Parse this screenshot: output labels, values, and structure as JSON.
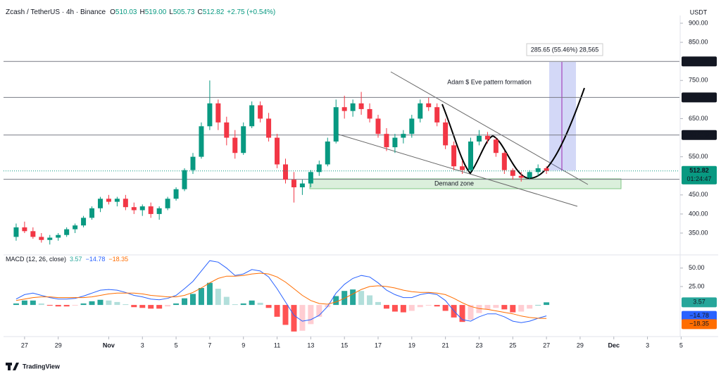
{
  "header": {
    "symbol": "Zcash / TetherUS · 4h · Binance",
    "ohlc": [
      [
        "O",
        "510.03"
      ],
      [
        "H",
        "519.00"
      ],
      [
        "L",
        "505.73"
      ],
      [
        "C",
        "512.82"
      ]
    ],
    "change": "+2.75 (+0.54%)",
    "currency": "USDT"
  },
  "chart_data": [
    {
      "type": "candlestick",
      "up_color": "#089981",
      "down_color": "#f23645",
      "x": [
        -0.5,
        0,
        0.5,
        1,
        1.5,
        2,
        2.5,
        3,
        3.5,
        4,
        4.5,
        5,
        5.5,
        6,
        6.5,
        7,
        7.5,
        8,
        8.5,
        9,
        9.5,
        10,
        10.5,
        11,
        11.5,
        12,
        12.5,
        13,
        13.5,
        14,
        14.5,
        15,
        15.5,
        16,
        16.5,
        17,
        17.5,
        18,
        18.5,
        19,
        19.5,
        20,
        20.5,
        21,
        21.5,
        22,
        22.5,
        23,
        23.5,
        24,
        24.5,
        25,
        25.5,
        26,
        26.5,
        27,
        27.5,
        28,
        28.5,
        29,
        29.5,
        30,
        30.5,
        31
      ],
      "open": [
        340,
        365,
        355,
        340,
        332,
        338,
        345,
        360,
        370,
        390,
        415,
        440,
        432,
        440,
        418,
        410,
        420,
        400,
        415,
        440,
        465,
        515,
        550,
        630,
        690,
        640,
        600,
        560,
        630,
        685,
        650,
        600,
        530,
        490,
        470,
        480,
        510,
        530,
        590,
        680,
        670,
        690,
        675,
        650,
        610,
        575,
        600,
        610,
        650,
        690,
        680,
        640,
        580,
        525,
        515,
        590,
        605,
        595,
        560,
        515,
        500,
        495,
        510,
        520
      ],
      "high": [
        375,
        380,
        365,
        350,
        345,
        350,
        365,
        375,
        395,
        420,
        445,
        450,
        445,
        450,
        430,
        425,
        430,
        420,
        445,
        470,
        520,
        560,
        640,
        750,
        700,
        655,
        620,
        640,
        695,
        695,
        665,
        610,
        545,
        510,
        490,
        515,
        540,
        600,
        700,
        710,
        700,
        720,
        690,
        660,
        625,
        610,
        620,
        660,
        700,
        705,
        690,
        650,
        590,
        540,
        600,
        620,
        615,
        600,
        565,
        520,
        510,
        515,
        530,
        525
      ],
      "low": [
        330,
        350,
        335,
        325,
        320,
        330,
        340,
        350,
        365,
        385,
        405,
        425,
        420,
        410,
        400,
        395,
        390,
        385,
        410,
        435,
        460,
        505,
        545,
        620,
        620,
        580,
        545,
        555,
        625,
        640,
        590,
        520,
        480,
        430,
        450,
        470,
        500,
        525,
        585,
        650,
        655,
        660,
        640,
        600,
        565,
        560,
        585,
        600,
        640,
        670,
        630,
        570,
        515,
        505,
        510,
        580,
        585,
        550,
        505,
        490,
        485,
        490,
        500,
        505
      ],
      "close": [
        365,
        355,
        340,
        332,
        338,
        345,
        360,
        370,
        390,
        415,
        440,
        432,
        440,
        418,
        410,
        420,
        400,
        415,
        440,
        465,
        515,
        550,
        630,
        690,
        640,
        600,
        560,
        630,
        685,
        650,
        600,
        530,
        490,
        470,
        480,
        510,
        530,
        590,
        680,
        670,
        690,
        675,
        650,
        610,
        575,
        600,
        610,
        650,
        690,
        680,
        640,
        580,
        525,
        515,
        590,
        605,
        595,
        560,
        515,
        500,
        495,
        510,
        520,
        512.82
      ],
      "xlim": [
        -1.25,
        38.9
      ],
      "ylim": [
        296.5,
        927.7
      ],
      "xticks": [
        {
          "value": 0,
          "label": "27"
        },
        {
          "value": 2,
          "label": "29"
        },
        {
          "value": 5,
          "label": "Nov"
        },
        {
          "value": 7,
          "label": "3"
        },
        {
          "value": 9,
          "label": "5"
        },
        {
          "value": 11,
          "label": "7"
        },
        {
          "value": 13,
          "label": "9"
        },
        {
          "value": 15,
          "label": "11"
        },
        {
          "value": 17,
          "label": "13"
        },
        {
          "value": 19,
          "label": "15"
        },
        {
          "value": 21,
          "label": "17"
        },
        {
          "value": 23,
          "label": "19"
        },
        {
          "value": 25,
          "label": "21"
        },
        {
          "value": 27,
          "label": "23"
        },
        {
          "value": 29,
          "label": "25"
        },
        {
          "value": 31,
          "label": "27"
        },
        {
          "value": 33,
          "label": "29"
        },
        {
          "value": 35,
          "label": "Dec"
        },
        {
          "value": 37,
          "label": "3"
        },
        {
          "value": 39,
          "label": "5"
        }
      ],
      "yticks": [
        {
          "value": 900,
          "label": "900.00"
        },
        {
          "value": 850,
          "label": "850.00"
        },
        {
          "value": 750,
          "label": "750.00"
        },
        {
          "value": 650,
          "label": "650.00"
        },
        {
          "value": 550,
          "label": "550.00"
        },
        {
          "value": 450,
          "label": "450.00"
        },
        {
          "value": 400,
          "label": "400.00"
        },
        {
          "value": 350,
          "label": "350.00"
        }
      ],
      "levels": [
        {
          "value": 800,
          "label": "800.00"
        },
        {
          "value": 705.6,
          "label": "705.60"
        },
        {
          "value": 607.1,
          "label": "607.10"
        },
        {
          "value": 491.09,
          "label": "491.09"
        }
      ],
      "last": 512.82,
      "countdown": "01:24:47",
      "annotations": {
        "pattern": "Adam $ Eve pattern formation",
        "zone": "Demand zone",
        "measure": "285.65 (55.46%) 28,565"
      }
    },
    {
      "type": "macd",
      "title": "MACD (12, 26, close)",
      "series": [
        {
          "name": "MACD",
          "color": "#2962ff",
          "values": [
            8,
            14,
            16,
            13,
            10,
            8,
            8,
            9,
            12,
            16,
            20,
            21,
            20,
            17,
            13,
            11,
            8,
            7,
            9,
            13,
            22,
            32,
            46,
            60,
            58,
            50,
            40,
            42,
            48,
            46,
            38,
            22,
            4,
            -14,
            -22,
            -20,
            -14,
            -2,
            16,
            28,
            36,
            40,
            38,
            30,
            20,
            14,
            10,
            10,
            14,
            16,
            14,
            6,
            -8,
            -20,
            -22,
            -16,
            -12,
            -12,
            -16,
            -22,
            -24,
            -22,
            -18,
            -14.78
          ]
        },
        {
          "name": "Signal",
          "color": "#ff6d00",
          "values": [
            6,
            8,
            10,
            11,
            11,
            10,
            10,
            10,
            10,
            11,
            13,
            15,
            16,
            16,
            16,
            15,
            13,
            12,
            11,
            11,
            13,
            17,
            23,
            30,
            36,
            39,
            39,
            40,
            42,
            43,
            42,
            38,
            31,
            22,
            13,
            6,
            2,
            1,
            4,
            9,
            15,
            21,
            25,
            26,
            25,
            23,
            20,
            18,
            17,
            17,
            16,
            14,
            9,
            3,
            -2,
            -5,
            -6,
            -8,
            -10,
            -12,
            -15,
            -17,
            -18,
            -18.35
          ]
        },
        {
          "name": "Histogram",
          "color": "#26a69a",
          "values": [
            2,
            6,
            6,
            2,
            -1,
            -2,
            -2,
            -1,
            2,
            5,
            7,
            6,
            4,
            1,
            -3,
            -4,
            -5,
            -5,
            -2,
            2,
            9,
            15,
            23,
            30,
            22,
            11,
            1,
            2,
            6,
            3,
            -4,
            -16,
            -27,
            -36,
            -35,
            -26,
            -16,
            -3,
            12,
            19,
            21,
            19,
            13,
            4,
            -5,
            -9,
            -10,
            -8,
            -3,
            -1,
            -2,
            -8,
            -17,
            -23,
            -20,
            -11,
            -6,
            -4,
            -6,
            -10,
            -9,
            -5,
            0,
            3.57
          ]
        }
      ],
      "ylim": [
        -40,
        65
      ],
      "yticks": [
        {
          "value": 50,
          "label": "50.00"
        },
        {
          "value": 25,
          "label": "25.00"
        }
      ],
      "readout": [
        {
          "value": 3.57,
          "label": "3.57",
          "color": "#26a69a"
        },
        {
          "value": -14.78,
          "label": "−14.78",
          "color": "#2962ff"
        },
        {
          "value": -18.35,
          "label": "−18.35",
          "color": "#ff6d00"
        }
      ]
    }
  ],
  "footer": {
    "brand": "TradingView"
  }
}
